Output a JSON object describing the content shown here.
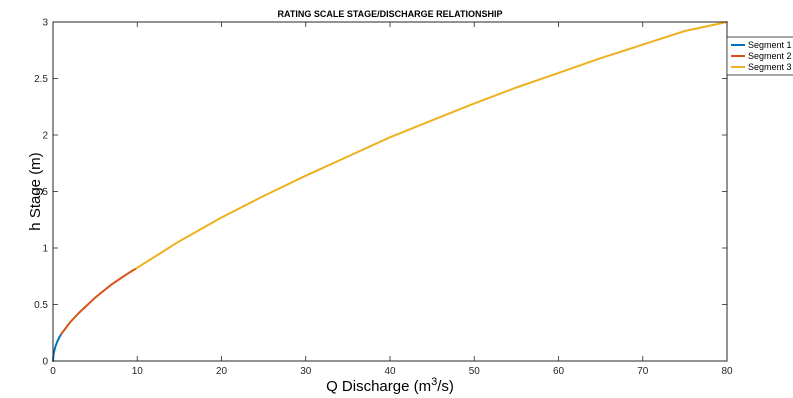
{
  "chart_data": {
    "type": "line",
    "title": "RATING SCALE   STAGE/DISCHARGE RELATIONSHIP",
    "xlabel": "Q   Discharge (m³/s)",
    "ylabel": "h   Stage (m)",
    "xlim": [
      0,
      80
    ],
    "ylim": [
      0,
      3
    ],
    "xticks": [
      0,
      10,
      20,
      30,
      40,
      50,
      60,
      70,
      80
    ],
    "yticks": [
      0,
      0.5,
      1,
      1.5,
      2,
      2.5,
      3
    ],
    "grid": false,
    "legend_position": "top-right",
    "series": [
      {
        "name": "Segment 1",
        "color": "#0072BD",
        "x": [
          0,
          0.05,
          0.15,
          0.3,
          0.5,
          0.75,
          1.0
        ],
        "y": [
          0,
          0.05,
          0.09,
          0.13,
          0.17,
          0.21,
          0.24
        ]
      },
      {
        "name": "Segment 2",
        "color": "#D95319",
        "x": [
          1.0,
          2,
          3,
          4,
          5,
          6,
          7,
          8,
          9,
          9.9
        ],
        "y": [
          0.24,
          0.34,
          0.42,
          0.49,
          0.56,
          0.62,
          0.68,
          0.73,
          0.78,
          0.82
        ]
      },
      {
        "name": "Segment 3",
        "color": "#EDB120",
        "x": [
          9.9,
          15,
          20,
          25,
          30,
          35,
          40,
          45,
          50,
          55,
          60,
          65,
          70,
          75,
          80
        ],
        "y": [
          0.82,
          1.06,
          1.27,
          1.46,
          1.64,
          1.81,
          1.98,
          2.13,
          2.28,
          2.42,
          2.55,
          2.68,
          2.8,
          2.92,
          3.0
        ]
      }
    ]
  }
}
